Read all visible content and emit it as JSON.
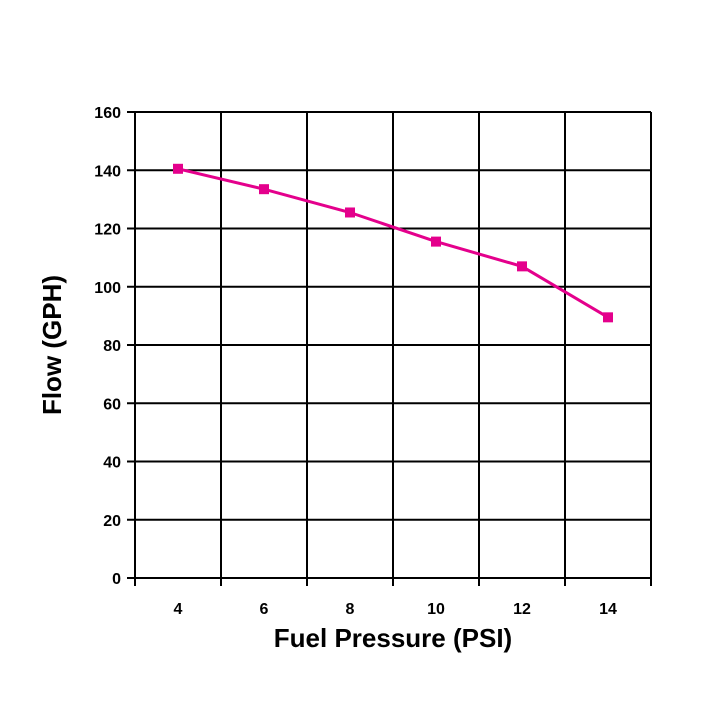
{
  "chart_data": {
    "type": "line",
    "title": "",
    "xlabel": "Fuel Pressure (PSI)",
    "ylabel": "Flow (GPH)",
    "xlim": [
      3,
      15
    ],
    "ylim": [
      0,
      160
    ],
    "x_ticks": [
      4,
      6,
      8,
      10,
      12,
      14
    ],
    "y_ticks": [
      0,
      20,
      40,
      60,
      80,
      100,
      120,
      140,
      160
    ],
    "x_gridlines": [
      3,
      5,
      7,
      9,
      11,
      13,
      15
    ],
    "y_gridlines": [
      0,
      20,
      40,
      60,
      80,
      100,
      120,
      140,
      160
    ],
    "grid": true,
    "legend": "none",
    "series": [
      {
        "x": [
          4,
          6,
          8,
          10,
          12,
          14
        ],
        "values": [
          140.5,
          133.5,
          125.5,
          115.5,
          107,
          89.5
        ],
        "color": "#e4008c",
        "marker": "square"
      }
    ]
  }
}
